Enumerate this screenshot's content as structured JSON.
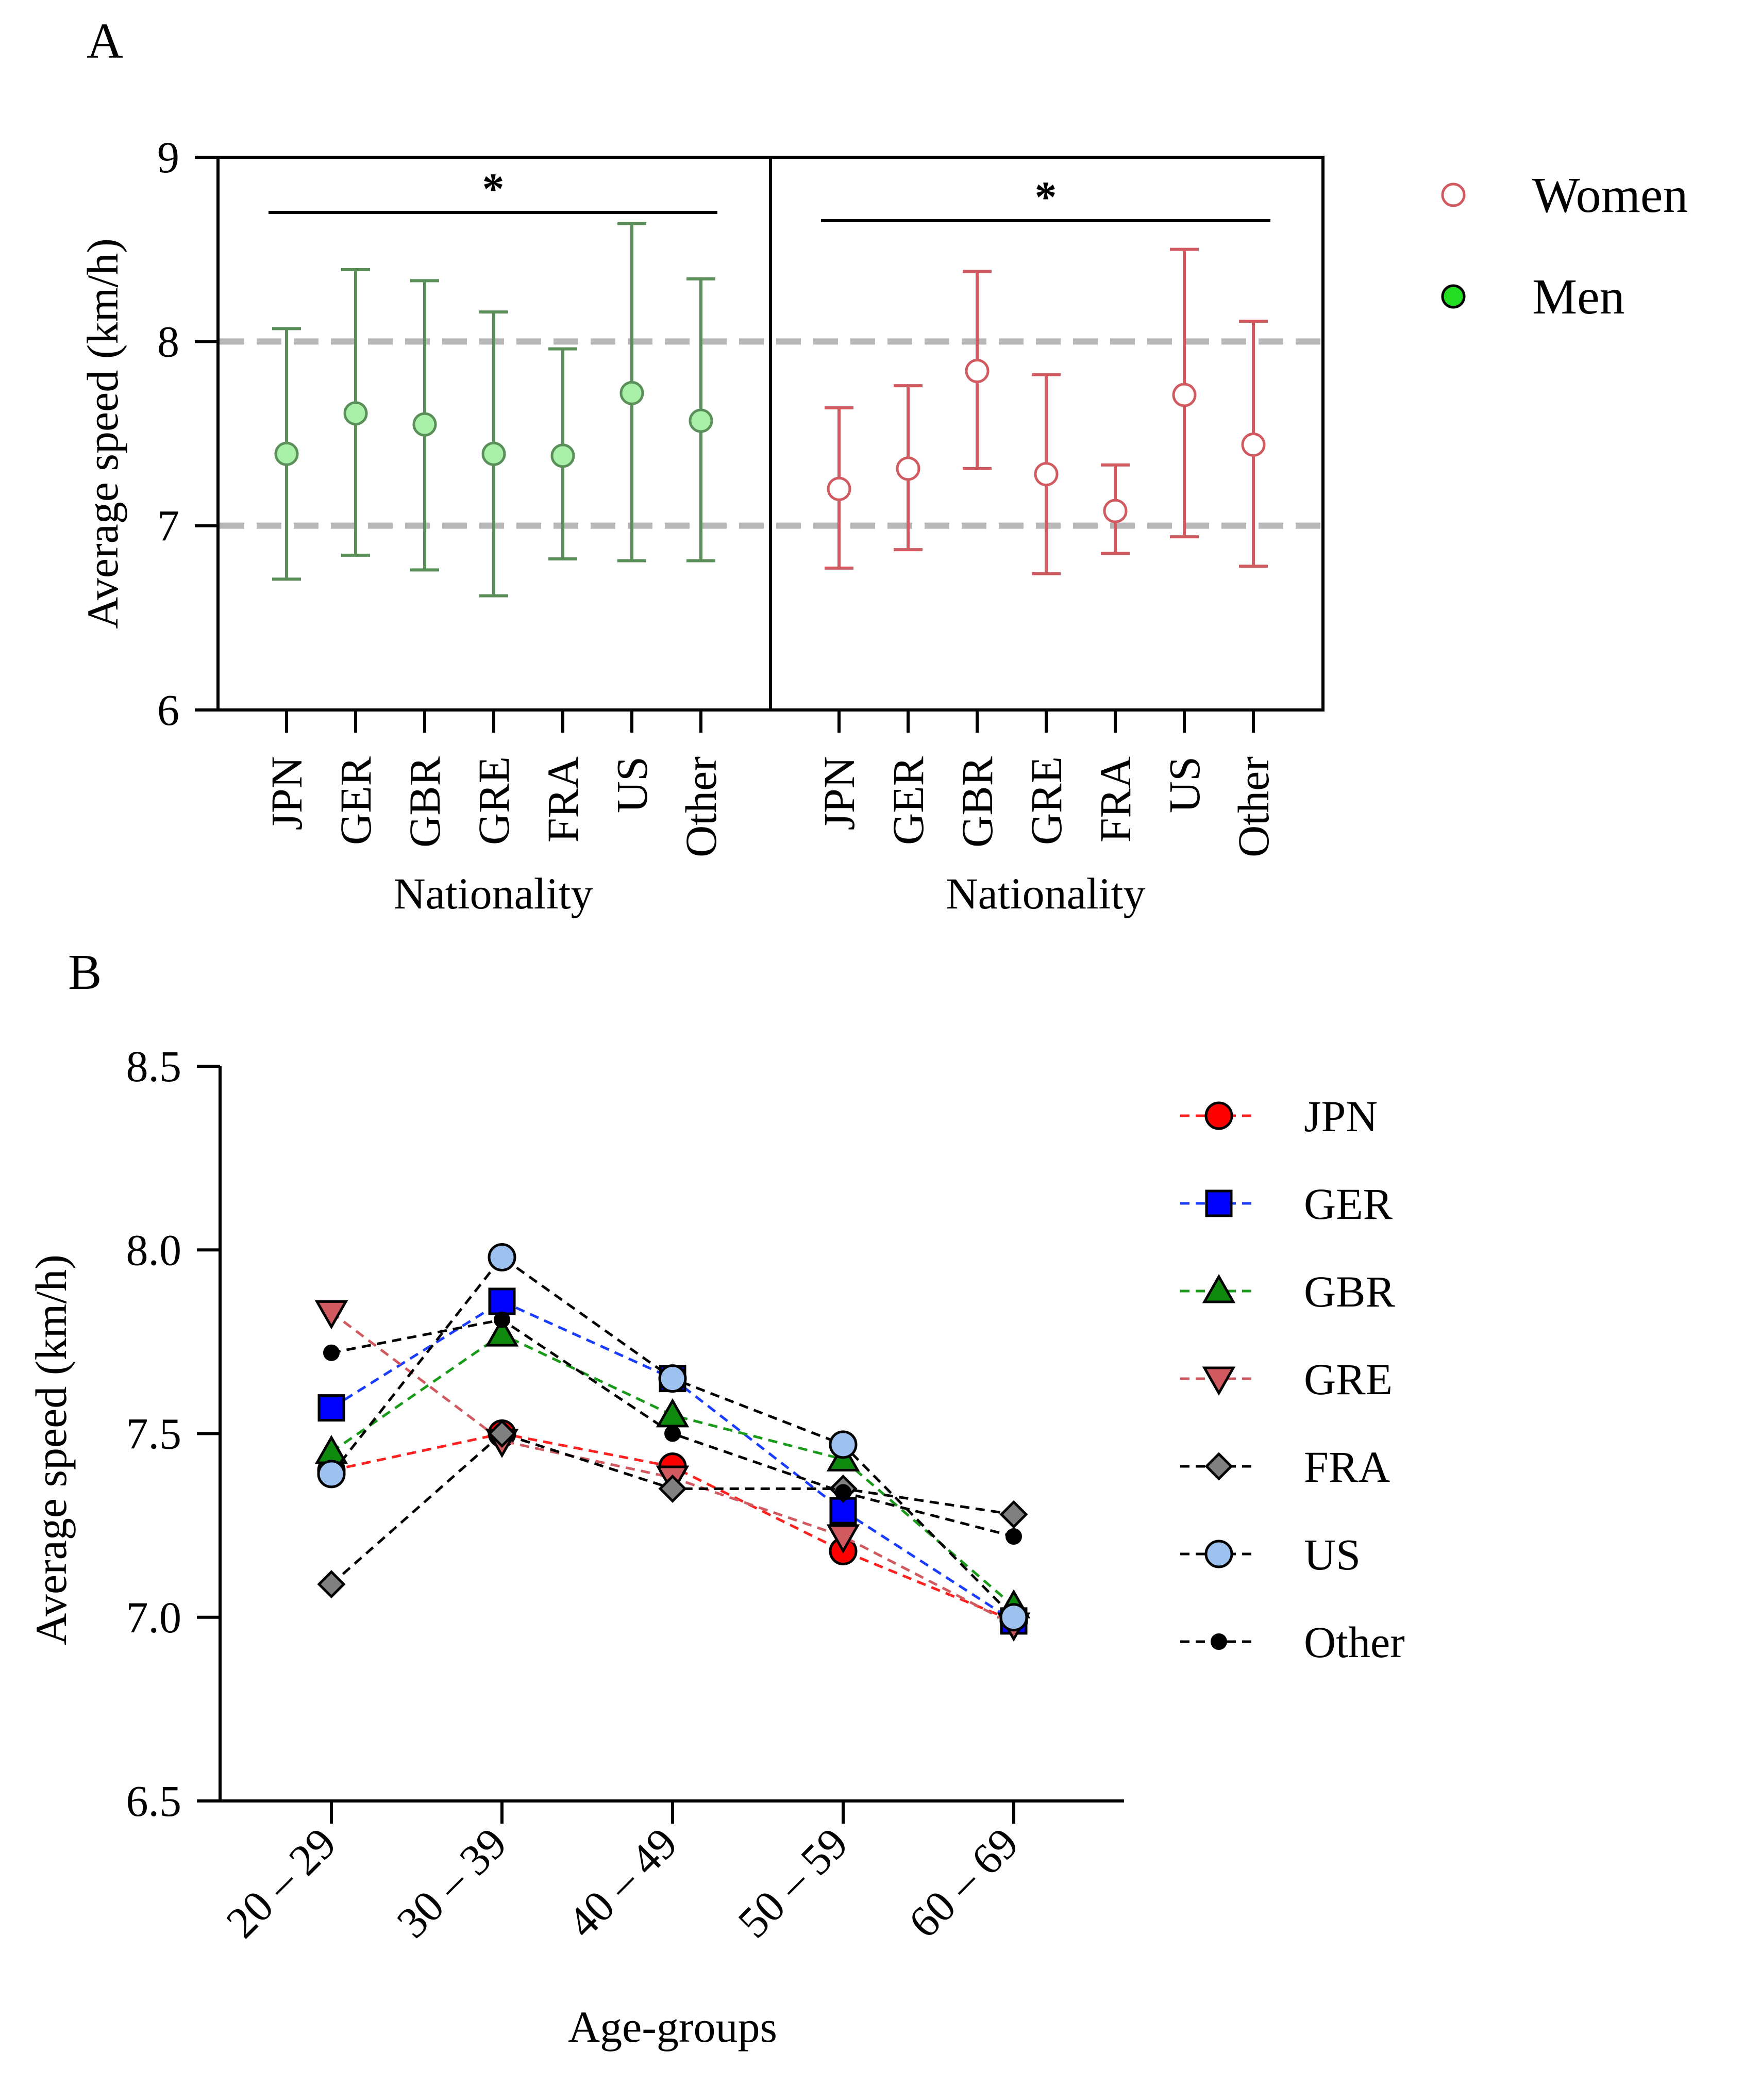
{
  "colors": {
    "men": "#5a8f5a",
    "men_fill": "#a8f0a8",
    "women": "#d05a60",
    "dash_ref": "#b8b8b8",
    "JPN": "#ff0000",
    "GER": "#0000ff",
    "GBR": "#0f8a0f",
    "GRE": "#d05a60",
    "FRA": "#808080",
    "US": "#9ec2f0",
    "Other": "#000000",
    "line_JPN": "#ff2020",
    "line_GER": "#1a3cff",
    "line_GBR": "#1a9a1a",
    "line_GRE": "#d05a60",
    "line_black": "#000000",
    "legend_men": "#22dd22"
  },
  "chart_data": [
    {
      "id": "A",
      "panel_label": "A",
      "type": "scatter",
      "subtype": "mean with error bars (mean ± SD)",
      "ylabel": "Average speed (km/h)",
      "ylim": [
        6,
        9
      ],
      "yticks": [
        "6",
        "7",
        "8",
        "9"
      ],
      "reference_lines": [
        7,
        8
      ],
      "legend": {
        "position": "top-right",
        "women": "Women",
        "men": "Men"
      },
      "men": {
        "name": "Men",
        "xlabel": "Nationality",
        "significance": "*",
        "categories": [
          "JPN",
          "GER",
          "GBR",
          "GRE",
          "FRA",
          "US",
          "Other"
        ],
        "mean": [
          7.39,
          7.61,
          7.55,
          7.39,
          7.38,
          7.72,
          7.57
        ],
        "lower": [
          6.71,
          6.84,
          6.76,
          6.62,
          6.82,
          6.81,
          6.81
        ],
        "upper": [
          8.07,
          8.39,
          8.33,
          8.16,
          7.96,
          8.64,
          8.34
        ]
      },
      "women": {
        "name": "Women",
        "xlabel": "Nationality",
        "significance": "*",
        "categories": [
          "JPN",
          "GER",
          "GBR",
          "GRE",
          "FRA",
          "US",
          "Other"
        ],
        "mean": [
          7.2,
          7.31,
          7.84,
          7.28,
          7.08,
          7.71,
          7.44
        ],
        "lower": [
          6.77,
          6.87,
          7.31,
          6.74,
          6.85,
          6.94,
          6.78
        ],
        "upper": [
          7.64,
          7.76,
          8.38,
          7.82,
          7.33,
          8.5,
          8.11
        ]
      }
    },
    {
      "id": "B",
      "panel_label": "B",
      "type": "line",
      "xlabel": "Age-groups",
      "ylabel": "Average speed (km/h)",
      "ylim": [
        6.5,
        8.5
      ],
      "yticks": [
        "6.5",
        "7.0",
        "7.5",
        "8.0",
        "8.5"
      ],
      "categories": [
        "20 – 29",
        "30 – 39",
        "40 – 49",
        "50 – 59",
        "60 – 69"
      ],
      "legend_position": "right",
      "series": [
        {
          "name": "JPN",
          "marker": "circle",
          "values": [
            7.4,
            7.5,
            7.41,
            7.18,
            6.99
          ]
        },
        {
          "name": "GER",
          "marker": "square",
          "values": [
            7.57,
            7.86,
            7.65,
            7.29,
            6.99
          ]
        },
        {
          "name": "GBR",
          "marker": "triangle-up",
          "values": [
            7.45,
            7.77,
            7.55,
            7.43,
            7.03
          ]
        },
        {
          "name": "GRE",
          "marker": "triangle-down",
          "values": [
            7.83,
            7.48,
            7.38,
            7.22,
            6.98
          ]
        },
        {
          "name": "FRA",
          "marker": "diamond",
          "values": [
            7.09,
            7.5,
            7.35,
            7.35,
            7.28
          ]
        },
        {
          "name": "US",
          "marker": "circle",
          "values": [
            7.39,
            7.98,
            7.65,
            7.47,
            7.0
          ]
        },
        {
          "name": "Other",
          "marker": "dot",
          "values": [
            7.72,
            7.81,
            7.5,
            7.34,
            7.22
          ]
        }
      ]
    }
  ]
}
